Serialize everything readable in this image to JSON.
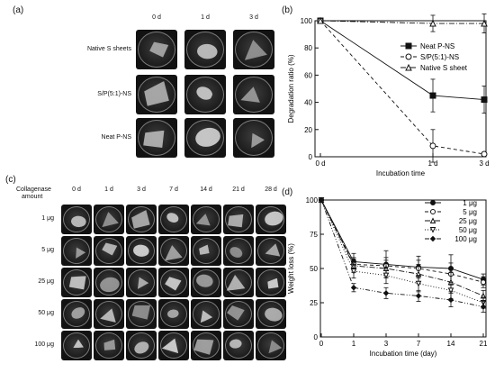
{
  "panels": {
    "a": {
      "label": "(a)",
      "columns": [
        "0 d",
        "1 d",
        "3 d"
      ],
      "rows": [
        "Native S sheets",
        "S/P(5:1)-NS",
        "Neat P-NS"
      ]
    },
    "c": {
      "label": "(c)",
      "corner_label": [
        "Collagenase",
        "amount"
      ],
      "columns": [
        "0 d",
        "1 d",
        "3 d",
        "7 d",
        "14 d",
        "21 d",
        "28 d"
      ],
      "rows": [
        "1 μg",
        "5 μg",
        "25 μg",
        "50 μg",
        "100 μg"
      ]
    }
  },
  "chart_data": [
    {
      "panel": "(b)",
      "type": "line",
      "categories": [
        "0 d",
        "1 d",
        "3 d"
      ],
      "xlabel": "Incubation time",
      "ylabel": "Degradation ratio (%)",
      "ylim": [
        0,
        100
      ],
      "yticks": [
        0,
        20,
        40,
        60,
        80,
        100
      ],
      "grid": false,
      "legend_position": "right",
      "series": [
        {
          "name": "Neat P-NS",
          "values": [
            100,
            45,
            42
          ],
          "errors": [
            0,
            12,
            10
          ],
          "marker": "square-filled",
          "line": "solid"
        },
        {
          "name": "S/P(5:1)-NS",
          "values": [
            100,
            8,
            2
          ],
          "errors": [
            0,
            12,
            0
          ],
          "marker": "circle-open",
          "line": "dashed"
        },
        {
          "name": "Native S sheet",
          "values": [
            100,
            98,
            98
          ],
          "errors": [
            0,
            6,
            7
          ],
          "marker": "triangle-open",
          "line": "dashdot"
        }
      ]
    },
    {
      "panel": "(d)",
      "type": "line",
      "x": [
        0,
        1,
        3,
        7,
        14,
        21
      ],
      "xticklabels": [
        "0",
        "1",
        "3",
        "7",
        "14",
        "21"
      ],
      "xlabel": "Incubation time (day)",
      "ylabel": "Weight loss (%)",
      "ylim": [
        0,
        100
      ],
      "yticks": [
        0,
        25,
        50,
        75,
        100
      ],
      "grid": false,
      "legend_position": "top-right",
      "series": [
        {
          "name": "1 μg",
          "values": [
            100,
            55,
            53,
            51,
            50,
            42
          ],
          "errors": [
            0,
            6,
            10,
            8,
            10,
            4
          ],
          "marker": "circle-filled",
          "line": "solid"
        },
        {
          "name": "5 μg",
          "values": [
            100,
            53,
            52,
            50,
            46,
            40
          ],
          "errors": [
            0,
            5,
            6,
            6,
            8,
            4
          ],
          "marker": "circle-open",
          "line": "dashed"
        },
        {
          "name": "25 μg",
          "values": [
            100,
            52,
            50,
            46,
            40,
            30
          ],
          "errors": [
            0,
            5,
            6,
            7,
            7,
            4
          ],
          "marker": "triangle-open",
          "line": "dashdot"
        },
        {
          "name": "50 μg",
          "values": [
            100,
            48,
            45,
            39,
            34,
            25
          ],
          "errors": [
            0,
            5,
            6,
            6,
            6,
            4
          ],
          "marker": "triangle-down-open",
          "line": "dotted"
        },
        {
          "name": "100 μg",
          "values": [
            100,
            36,
            32,
            30,
            27,
            22
          ],
          "errors": [
            0,
            3,
            4,
            4,
            5,
            4
          ],
          "marker": "diamond-filled",
          "line": "dashdotdot"
        }
      ]
    }
  ]
}
